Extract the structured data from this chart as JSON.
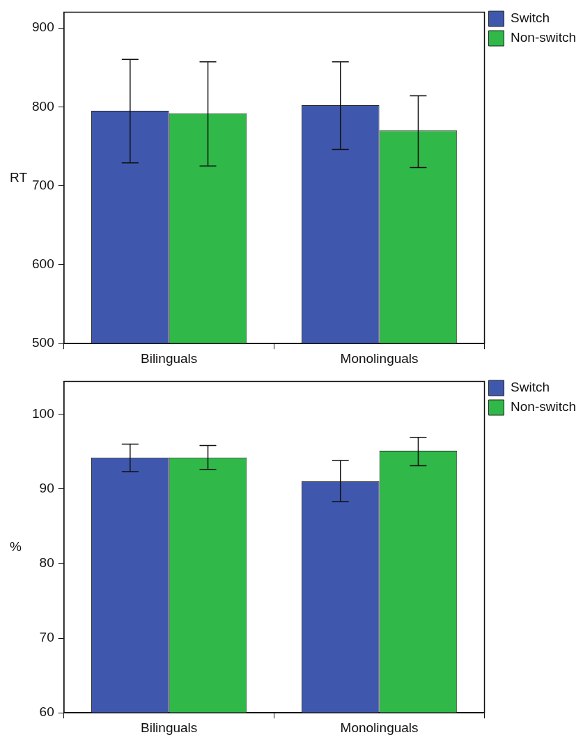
{
  "chart_data": [
    {
      "type": "bar",
      "ylabel": "RT",
      "categories": [
        "Bilinguals",
        "Monolinguals"
      ],
      "series": [
        {
          "name": "Switch",
          "color": "#3f58ad",
          "values": [
            795,
            802
          ],
          "errors": [
            [
              729,
              860
            ],
            [
              746,
              857
            ]
          ]
        },
        {
          "name": "Non-switch",
          "color": "#30b848",
          "values": [
            792,
            770
          ],
          "errors": [
            [
              725,
              857
            ],
            [
              723,
              814
            ]
          ]
        }
      ],
      "ylim": [
        500,
        920
      ],
      "yticks": [
        500,
        600,
        700,
        800,
        900
      ],
      "grid": false,
      "legend": "top right"
    },
    {
      "type": "bar",
      "ylabel": "%",
      "categories": [
        "Bilinguals",
        "Monolinguals"
      ],
      "series": [
        {
          "name": "Switch",
          "color": "#3f58ad",
          "values": [
            94.2,
            91.0
          ],
          "errors": [
            [
              92.3,
              96.0
            ],
            [
              88.3,
              93.8
            ]
          ]
        },
        {
          "name": "Non-switch",
          "color": "#30b848",
          "values": [
            94.2,
            95.1
          ],
          "errors": [
            [
              92.6,
              95.8
            ],
            [
              93.1,
              96.9
            ]
          ]
        }
      ],
      "ylim": [
        60,
        104.4
      ],
      "yticks": [
        60,
        70,
        80,
        90,
        100
      ],
      "grid": false,
      "legend": "top right"
    }
  ]
}
